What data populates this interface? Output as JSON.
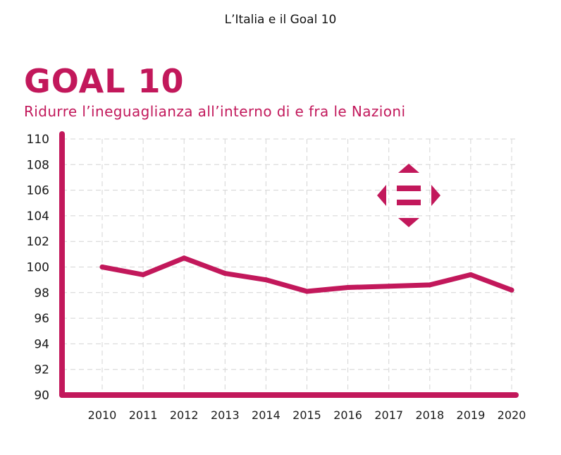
{
  "page_title": "L’Italia e il Goal 10",
  "heading": "GOAL 10",
  "subtitle": "Ridurre l’ineguaglianza all’interno di e fra le Nazioni",
  "colors": {
    "accent": "#c2185b",
    "grid": "#d4d4d4",
    "text": "#1a1a1a"
  },
  "icon": "goal-10-reduced-inequalities-icon",
  "chart_data": {
    "type": "line",
    "title": "",
    "xlabel": "",
    "ylabel": "",
    "x": [
      "2010",
      "2011",
      "2012",
      "2013",
      "2014",
      "2015",
      "2016",
      "2017",
      "2018",
      "2019",
      "2020"
    ],
    "series": [
      {
        "values": [
          100.0,
          99.4,
          100.7,
          99.5,
          99.0,
          98.1,
          98.4,
          98.5,
          98.6,
          99.4,
          98.2
        ]
      }
    ],
    "yticks": [
      90,
      92,
      94,
      96,
      98,
      100,
      102,
      104,
      106,
      108,
      110
    ],
    "ylim": [
      90,
      110
    ],
    "grid": true,
    "legend": "none"
  }
}
